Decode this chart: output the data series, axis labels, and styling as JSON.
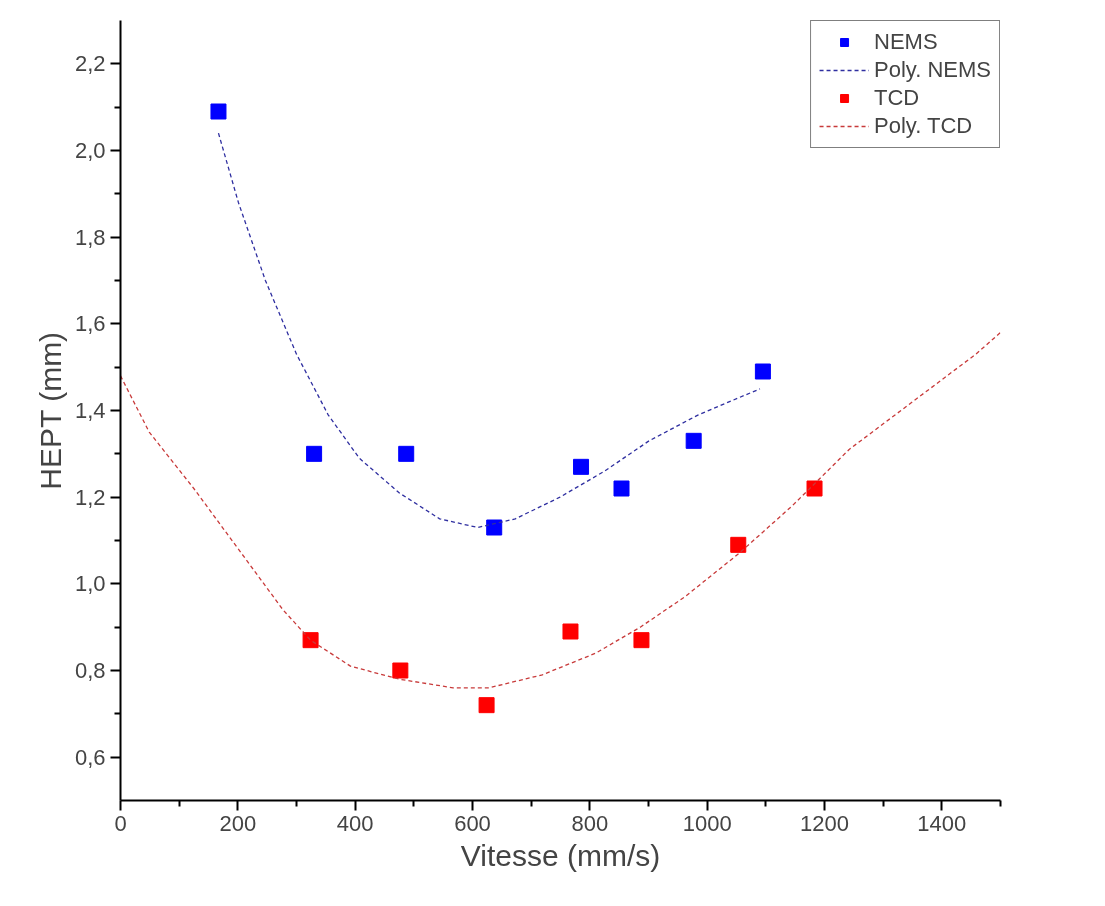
{
  "chart_data": {
    "type": "scatter",
    "xlabel": "Vitesse (mm/s)",
    "ylabel": "HEPT (mm)",
    "xlim": [
      0,
      1500
    ],
    "ylim": [
      0.5,
      2.3
    ],
    "xticks": [
      0,
      200,
      400,
      600,
      800,
      1000,
      1200,
      1400
    ],
    "yticks": [
      {
        "value": 0.6,
        "label": "0,6"
      },
      {
        "value": 0.8,
        "label": "0,8"
      },
      {
        "value": 1.0,
        "label": "1,0"
      },
      {
        "value": 1.2,
        "label": "1,2"
      },
      {
        "value": 1.4,
        "label": "1,4"
      },
      {
        "value": 1.6,
        "label": "1,6"
      },
      {
        "value": 1.8,
        "label": "1,8"
      },
      {
        "value": 2.0,
        "label": "2,0"
      },
      {
        "value": 2.2,
        "label": "2,2"
      }
    ],
    "legend": "top right",
    "marker": "square",
    "series": [
      {
        "name": "NEMS",
        "color": "#0000ff",
        "x": [
          167,
          330,
          487,
          637,
          785,
          854,
          977,
          1095
        ],
        "values": [
          2.09,
          1.3,
          1.3,
          1.13,
          1.27,
          1.22,
          1.33,
          1.49
        ]
      },
      {
        "name": "Poly. NEMS",
        "type": "line",
        "marker": "none",
        "line_style": "dashed",
        "color": "#2f2fa0",
        "x": [
          167,
          201,
          247,
          300,
          354,
          407,
          475,
          544,
          609,
          673,
          749,
          825,
          901,
          985,
          1090
        ],
        "values": [
          2.04,
          1.88,
          1.7,
          1.53,
          1.39,
          1.29,
          1.21,
          1.15,
          1.13,
          1.15,
          1.2,
          1.26,
          1.33,
          1.39,
          1.45
        ]
      },
      {
        "name": "TCD",
        "color": "#ff0000",
        "x": [
          324,
          477,
          624,
          767,
          888,
          1053,
          1183
        ],
        "values": [
          0.87,
          0.8,
          0.72,
          0.89,
          0.87,
          1.09,
          1.22
        ]
      },
      {
        "name": "Poly. TCD",
        "type": "line",
        "marker": "none",
        "line_style": "dashed",
        "color": "#c83a3a",
        "x": [
          0,
          49,
          125,
          201,
          277,
          324,
          392,
          475,
          567,
          628,
          719,
          810,
          886,
          962,
          1054,
          1145,
          1242,
          1458,
          1500
        ],
        "values": [
          1.48,
          1.35,
          1.22,
          1.08,
          0.94,
          0.87,
          0.81,
          0.78,
          0.76,
          0.76,
          0.79,
          0.84,
          0.9,
          0.97,
          1.07,
          1.18,
          1.31,
          1.53,
          1.58
        ]
      }
    ]
  }
}
